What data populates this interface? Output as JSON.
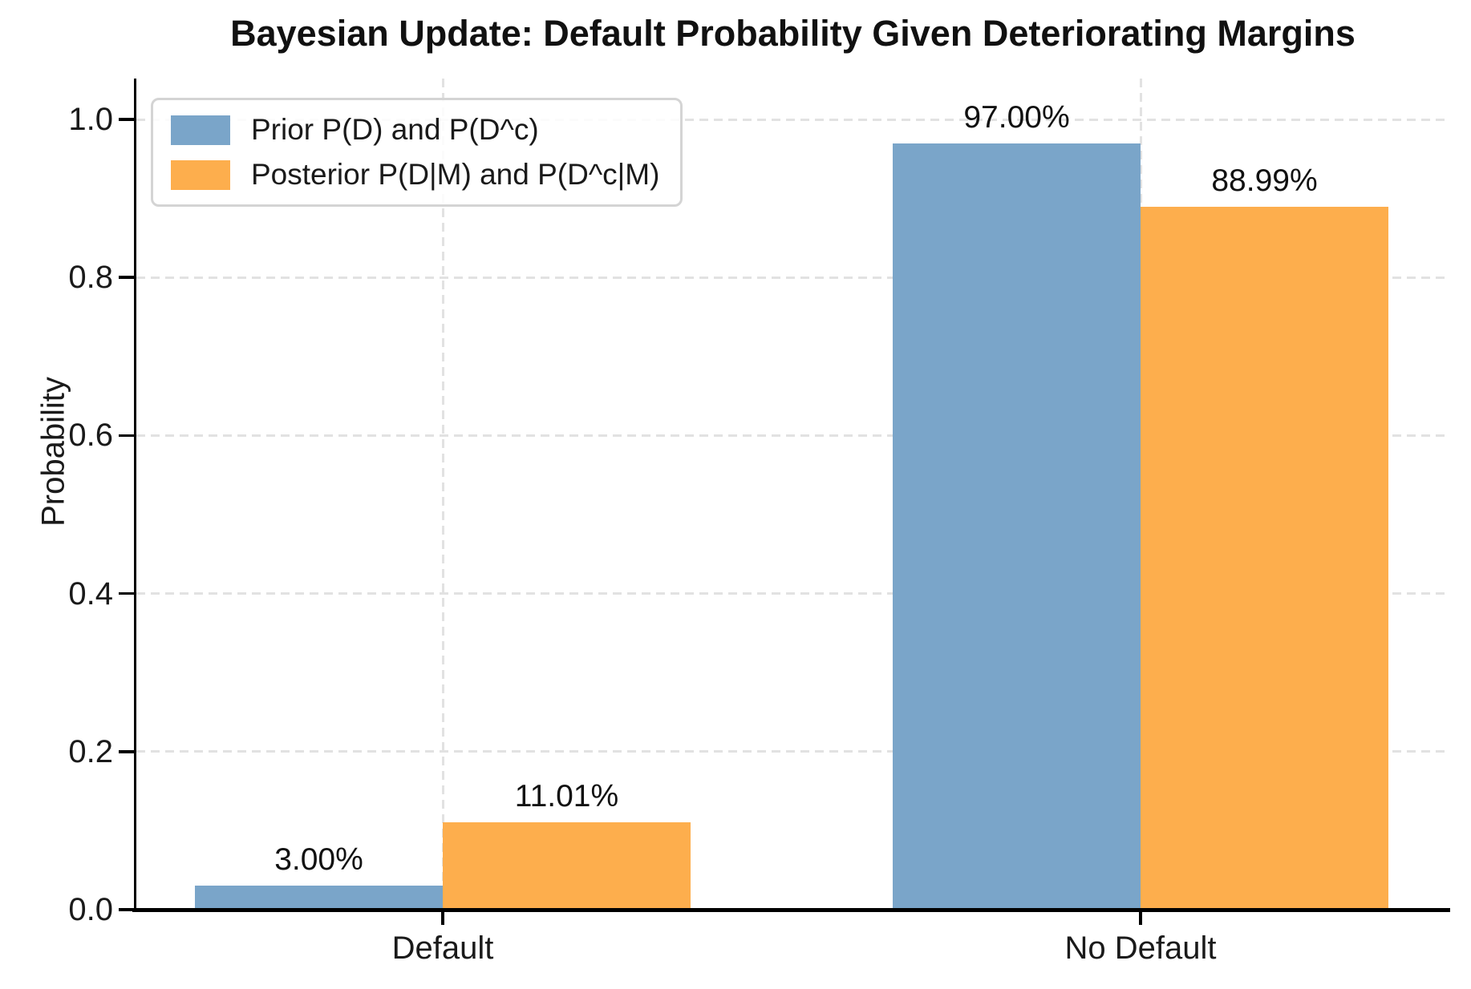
{
  "chart_data": {
    "type": "bar",
    "title": "Bayesian Update: Default Probability Given Deteriorating Margins",
    "xlabel": "",
    "ylabel": "Probability",
    "categories": [
      "Default",
      "No Default"
    ],
    "series": [
      {
        "name": "Prior P(D) and P(D^c)",
        "color": "#7AA5C9",
        "values": [
          0.03,
          0.97
        ],
        "value_labels": [
          "3.00%",
          "97.00%"
        ]
      },
      {
        "name": "Posterior P(D|M) and P(D^c|M)",
        "color": "#FDAE4D",
        "values": [
          0.1101,
          0.8899
        ],
        "value_labels": [
          "11.01%",
          "88.99%"
        ]
      }
    ],
    "ylim": [
      0.0,
      1.05
    ],
    "yticks": [
      0.0,
      0.2,
      0.4,
      0.6,
      0.8,
      1.0
    ],
    "ytick_labels": [
      "0.0",
      "0.2",
      "0.4",
      "0.6",
      "0.8",
      "1.0"
    ],
    "grid": true,
    "grid_style": "dashed",
    "legend_position": "upper left",
    "colors": {
      "grid": "#e2e2e2",
      "axis": "#000000",
      "text": "#1a1a1a",
      "background": "#ffffff",
      "legend_border": "#d4d4d4"
    }
  }
}
